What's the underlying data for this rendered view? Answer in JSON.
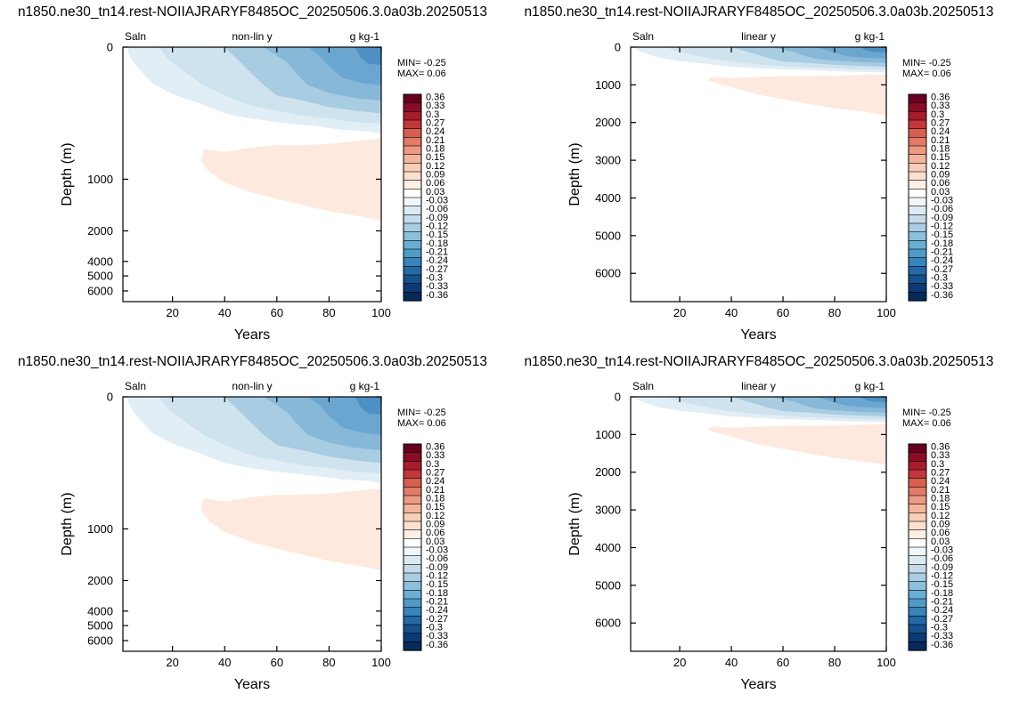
{
  "chart_data": [
    {
      "type": "heatmap",
      "title": "n1850.ne30_tn14.rest-NOIIAJRARYF8485OC_20250506.3.0a03b.20250513",
      "left_label": "Saln",
      "center_label": "non-lin y",
      "right_label": "g kg-1",
      "xlabel": "Years",
      "ylabel": "Depth (m)",
      "xlim": [
        1,
        100
      ],
      "ylim": [
        0,
        6500
      ],
      "y_scale": "non-linear",
      "x_ticks": [
        20,
        40,
        60,
        80,
        100
      ],
      "y_ticks": [
        0,
        1000,
        2000,
        4000,
        5000,
        6000
      ],
      "stats": {
        "min": "MIN= -0.25",
        "max": "MAX=  0.06"
      },
      "colorbar_levels": [
        "0.36",
        "0.33",
        "0.3",
        "0.27",
        "0.24",
        "0.21",
        "0.18",
        "0.15",
        "0.12",
        "0.09",
        "0.06",
        "0.03",
        "-0.03",
        "-0.06",
        "-0.09",
        "-0.12",
        "-0.15",
        "-0.18",
        "-0.21",
        "-0.24",
        "-0.27",
        "-0.3",
        "-0.33",
        "-0.36"
      ]
    },
    {
      "type": "heatmap",
      "title": "n1850.ne30_tn14.rest-NOIIAJRARYF8485OC_20250506.3.0a03b.20250513",
      "left_label": "Saln",
      "center_label": "linear y",
      "right_label": "g kg-1",
      "xlabel": "Years",
      "ylabel": "Depth (m)",
      "xlim": [
        1,
        100
      ],
      "ylim": [
        0,
        6750
      ],
      "y_scale": "linear",
      "x_ticks": [
        20,
        40,
        60,
        80,
        100
      ],
      "y_ticks": [
        0,
        1000,
        2000,
        3000,
        4000,
        5000,
        6000
      ],
      "stats": {
        "min": "MIN= -0.25",
        "max": "MAX=  0.06"
      },
      "colorbar_levels": [
        "0.36",
        "0.33",
        "0.3",
        "0.27",
        "0.24",
        "0.21",
        "0.18",
        "0.15",
        "0.12",
        "0.09",
        "0.06",
        "0.03",
        "-0.03",
        "-0.06",
        "-0.09",
        "-0.12",
        "-0.15",
        "-0.18",
        "-0.21",
        "-0.24",
        "-0.27",
        "-0.3",
        "-0.33",
        "-0.36"
      ]
    },
    {
      "type": "heatmap",
      "title": "n1850.ne30_tn14.rest-NOIIAJRARYF8485OC_20250506.3.0a03b.20250513",
      "left_label": "Saln",
      "center_label": "non-lin y",
      "right_label": "g kg-1",
      "xlabel": "Years",
      "ylabel": "Depth (m)",
      "xlim": [
        1,
        100
      ],
      "ylim": [
        0,
        6500
      ],
      "y_scale": "non-linear",
      "x_ticks": [
        20,
        40,
        60,
        80,
        100
      ],
      "y_ticks": [
        0,
        1000,
        2000,
        4000,
        5000,
        6000
      ],
      "stats": {
        "min": "MIN= -0.25",
        "max": "MAX=  0.06"
      },
      "colorbar_levels": [
        "0.36",
        "0.33",
        "0.3",
        "0.27",
        "0.24",
        "0.21",
        "0.18",
        "0.15",
        "0.12",
        "0.09",
        "0.06",
        "0.03",
        "-0.03",
        "-0.06",
        "-0.09",
        "-0.12",
        "-0.15",
        "-0.18",
        "-0.21",
        "-0.24",
        "-0.27",
        "-0.3",
        "-0.33",
        "-0.36"
      ]
    },
    {
      "type": "heatmap",
      "title": "n1850.ne30_tn14.rest-NOIIAJRARYF8485OC_20250506.3.0a03b.20250513",
      "left_label": "Saln",
      "center_label": "linear y",
      "right_label": "g kg-1",
      "xlabel": "Years",
      "ylabel": "Depth (m)",
      "xlim": [
        1,
        100
      ],
      "ylim": [
        0,
        6750
      ],
      "y_scale": "linear",
      "x_ticks": [
        20,
        40,
        60,
        80,
        100
      ],
      "y_ticks": [
        0,
        1000,
        2000,
        3000,
        4000,
        5000,
        6000
      ],
      "stats": {
        "min": "MIN= -0.25",
        "max": "MAX=  0.06"
      },
      "colorbar_levels": [
        "0.36",
        "0.33",
        "0.3",
        "0.27",
        "0.24",
        "0.21",
        "0.18",
        "0.15",
        "0.12",
        "0.09",
        "0.06",
        "0.03",
        "-0.03",
        "-0.06",
        "-0.09",
        "-0.12",
        "-0.15",
        "-0.18",
        "-0.21",
        "-0.24",
        "-0.27",
        "-0.3",
        "-0.33",
        "-0.36"
      ]
    }
  ],
  "colors": {
    "colorbar": [
      "#67001f",
      "#8a0b25",
      "#a81d2c",
      "#c2373a",
      "#d6604d",
      "#e27a66",
      "#ec9a82",
      "#f4b59d",
      "#f8cdb7",
      "#fbdfcf",
      "#fdefe6",
      "#ffffff",
      "#f0f6fa",
      "#dbeaf2",
      "#c6dbea",
      "#a9cde2",
      "#8cbfdb",
      "#6aaed4",
      "#4f9bc7",
      "#3884bb",
      "#2468a6",
      "#15508f",
      "#0b3a75",
      "#062a5a"
    ],
    "neg1": "#e1eef6",
    "neg2": "#cfe3ef",
    "neg3": "#a8cce2",
    "neg4": "#87b8d8",
    "neg5": "#6aa6d0",
    "neg6": "#4e8fc4",
    "pos1": "#fde9de"
  }
}
